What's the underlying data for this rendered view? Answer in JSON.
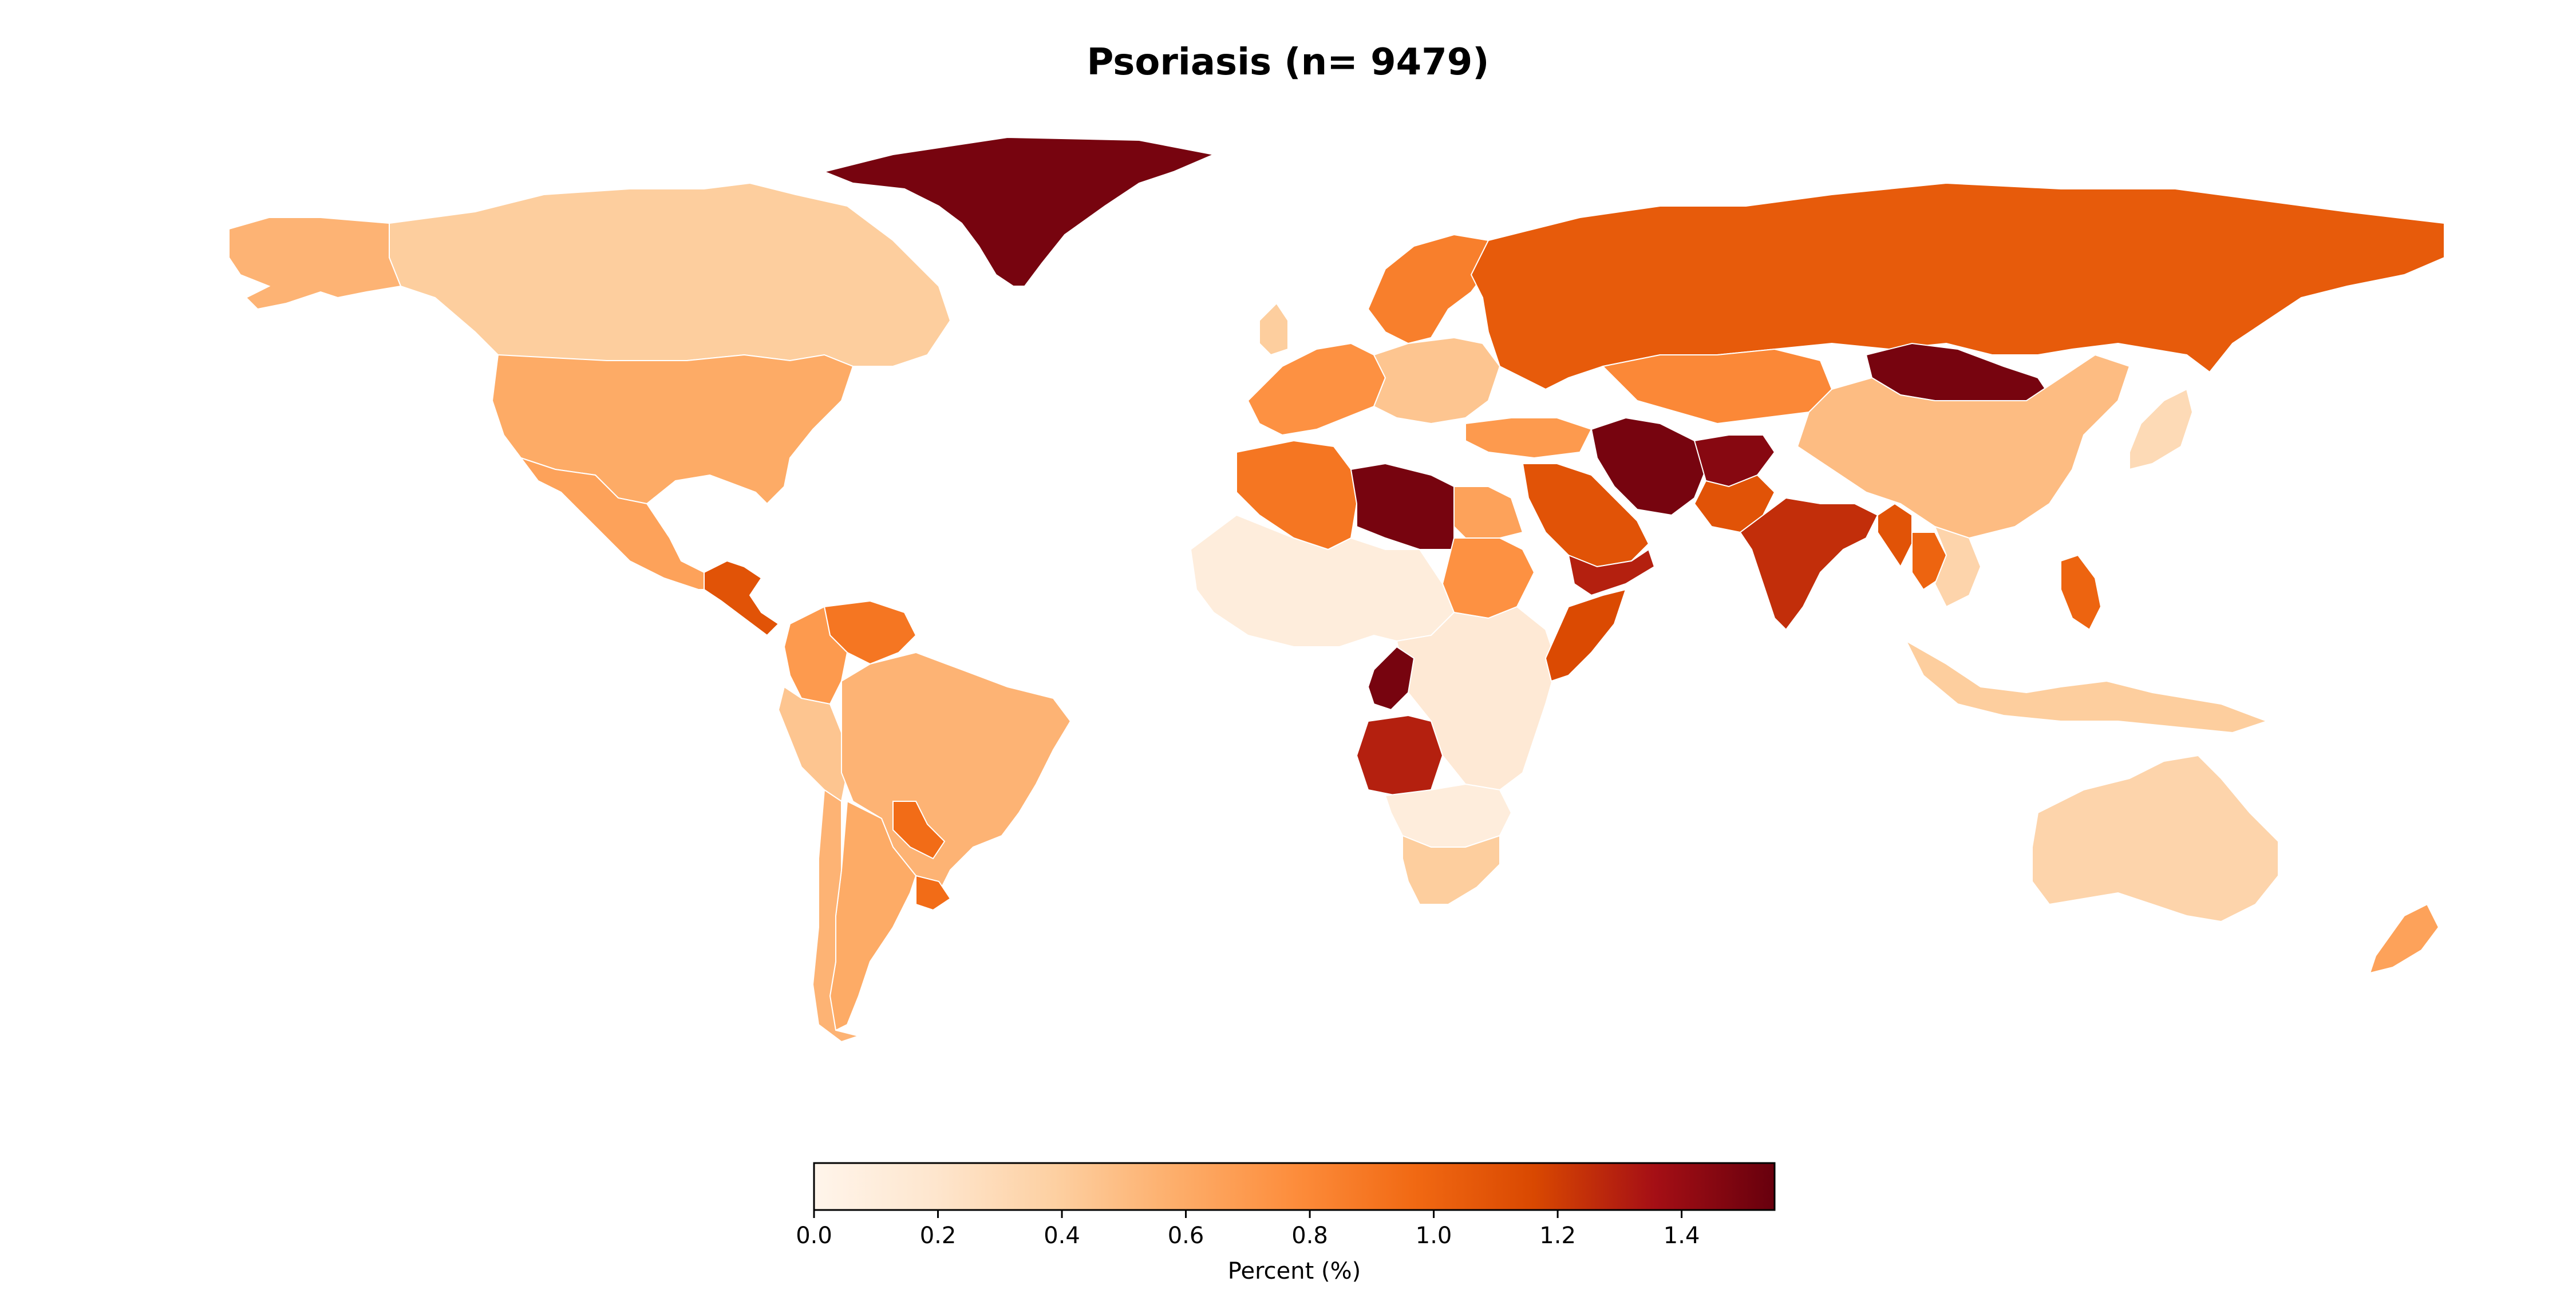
{
  "title": "Psoriasis (n= 9479)",
  "colorbar": {
    "label": "Percent (%)",
    "min": 0.0,
    "max": 1.55,
    "ticks": [
      "0.0",
      "0.2",
      "0.4",
      "0.6",
      "0.8",
      "1.0",
      "1.2",
      "1.4"
    ],
    "colormap": [
      "#fff5eb",
      "#fee6ce",
      "#fdd0a2",
      "#fdae6b",
      "#fd8d3c",
      "#f16913",
      "#d94801",
      "#a50f15",
      "#67000d"
    ]
  },
  "regions": [
    {
      "name": "Greenland",
      "value": 1.5
    },
    {
      "name": "Canada",
      "value": 0.4
    },
    {
      "name": "Alaska",
      "value": 0.55
    },
    {
      "name": "United States",
      "value": 0.6
    },
    {
      "name": "Mexico",
      "value": 0.65
    },
    {
      "name": "Central America",
      "value": 1.1
    },
    {
      "name": "Colombia",
      "value": 0.7
    },
    {
      "name": "Venezuela",
      "value": 0.9
    },
    {
      "name": "Peru",
      "value": 0.45
    },
    {
      "name": "Brazil",
      "value": 0.55
    },
    {
      "name": "Paraguay",
      "value": 0.95
    },
    {
      "name": "Argentina",
      "value": 0.6
    },
    {
      "name": "Chile",
      "value": 0.55
    },
    {
      "name": "Uruguay",
      "value": 0.95
    },
    {
      "name": "Russia",
      "value": 1.05
    },
    {
      "name": "Mongolia",
      "value": 1.5
    },
    {
      "name": "China",
      "value": 0.5
    },
    {
      "name": "Kazakhstan",
      "value": 0.8
    },
    {
      "name": "Iran",
      "value": 1.5
    },
    {
      "name": "Afghanistan",
      "value": 1.45
    },
    {
      "name": "Pakistan",
      "value": 1.1
    },
    {
      "name": "India",
      "value": 1.25
    },
    {
      "name": "Saudi Arabia",
      "value": 1.1
    },
    {
      "name": "Yemen",
      "value": 1.3
    },
    {
      "name": "Libya",
      "value": 1.5
    },
    {
      "name": "Algeria",
      "value": 0.9
    },
    {
      "name": "Egypt",
      "value": 0.65
    },
    {
      "name": "Sudan",
      "value": 0.75
    },
    {
      "name": "West Africa",
      "value": 0.1
    },
    {
      "name": "Central Africa",
      "value": 0.15
    },
    {
      "name": "Congo",
      "value": 1.5
    },
    {
      "name": "Angola",
      "value": 1.3
    },
    {
      "name": "Somalia",
      "value": 1.15
    },
    {
      "name": "Southern Africa",
      "value": 0.1
    },
    {
      "name": "South Africa",
      "value": 0.4
    },
    {
      "name": "Australia",
      "value": 0.35
    },
    {
      "name": "Indonesia",
      "value": 0.4
    },
    {
      "name": "Philippines",
      "value": 1.0
    },
    {
      "name": "Southeast Asia",
      "value": 0.35
    },
    {
      "name": "Myanmar",
      "value": 1.1
    },
    {
      "name": "Thailand",
      "value": 1.0
    },
    {
      "name": "Japan",
      "value": 0.3
    },
    {
      "name": "New Zealand",
      "value": 0.65
    },
    {
      "name": "Europe West",
      "value": 0.75
    },
    {
      "name": "Scandinavia",
      "value": 0.85
    },
    {
      "name": "Eastern Europe",
      "value": 0.45
    },
    {
      "name": "Turkey",
      "value": 0.7
    },
    {
      "name": "UK",
      "value": 0.4
    }
  ]
}
